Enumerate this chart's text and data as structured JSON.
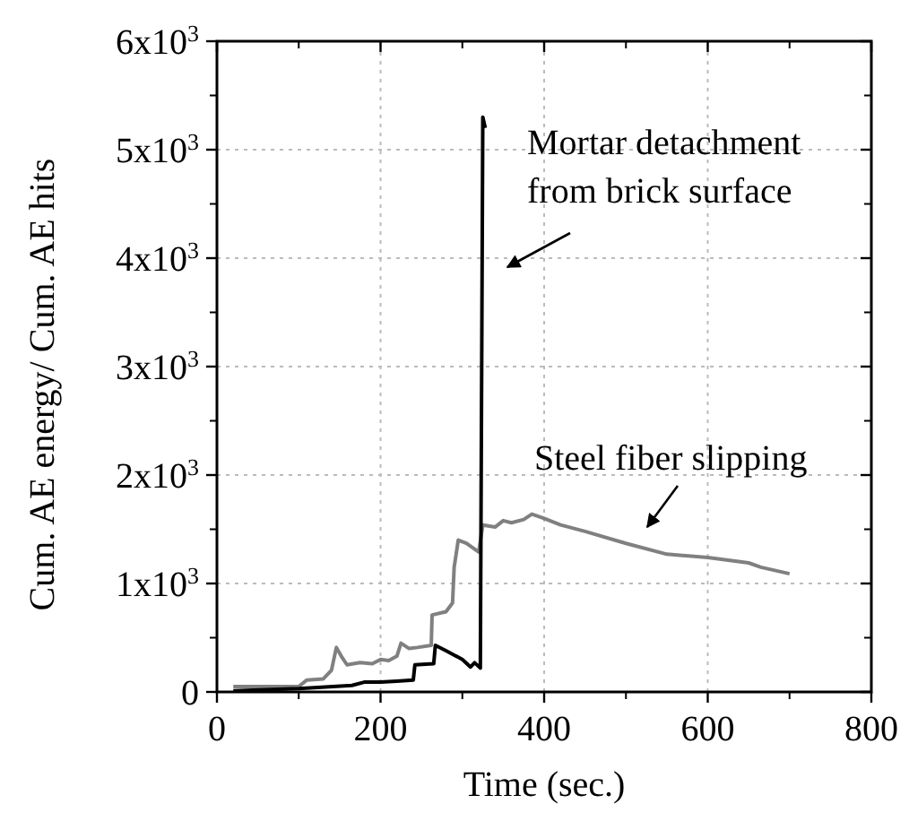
{
  "chart_data": {
    "type": "line",
    "xlabel": "Time (sec.)",
    "ylabel": "Cum. AE energy/ Cum. AE hits",
    "xlim": [
      0,
      800
    ],
    "xticks": [
      0,
      200,
      400,
      600,
      800
    ],
    "ylim": [
      0,
      6000
    ],
    "yticks": [
      0,
      {
        "value": 1000,
        "label": "1x10$^{3}$"
      },
      {
        "value": 2000,
        "label": "2x10$^{3}$"
      },
      {
        "value": 3000,
        "label": "3x10$^{3}$"
      },
      {
        "value": 4000,
        "label": "4x10$^{3}$"
      },
      {
        "value": 5000,
        "label": "5x10$^{3}$"
      },
      {
        "value": 6000,
        "label": "6x10$^{3}$"
      }
    ],
    "grid": true,
    "marker": "none",
    "line_style": "solid",
    "series": [
      {
        "color": "#808080",
        "x": [
          20,
          100,
          110,
          130,
          140,
          146,
          152,
          159,
          175,
          190,
          200,
          210,
          220,
          225,
          235,
          245,
          262,
          263,
          280,
          288,
          290,
          295,
          305,
          320,
          325,
          340,
          350,
          360,
          375,
          385,
          400,
          420,
          450,
          500,
          550,
          600,
          650,
          665,
          700
        ],
        "values": [
          50,
          50,
          110,
          120,
          200,
          410,
          330,
          250,
          270,
          260,
          300,
          290,
          330,
          450,
          400,
          410,
          430,
          710,
          740,
          820,
          1150,
          1400,
          1370,
          1290,
          1540,
          1520,
          1580,
          1560,
          1590,
          1640,
          1600,
          1540,
          1480,
          1370,
          1270,
          1240,
          1190,
          1150,
          1090
        ]
      },
      {
        "color": "#000000",
        "x": [
          20,
          100,
          165,
          180,
          200,
          220,
          240,
          242,
          265,
          267,
          280,
          300,
          310,
          315,
          322,
          325,
          328
        ],
        "values": [
          10,
          30,
          60,
          90,
          90,
          100,
          110,
          250,
          260,
          430,
          380,
          300,
          230,
          270,
          220,
          5300,
          5200
        ]
      }
    ],
    "annotations": [
      "Mortar detachment\nfrom brick surface",
      "Steel fiber slipping"
    ]
  }
}
